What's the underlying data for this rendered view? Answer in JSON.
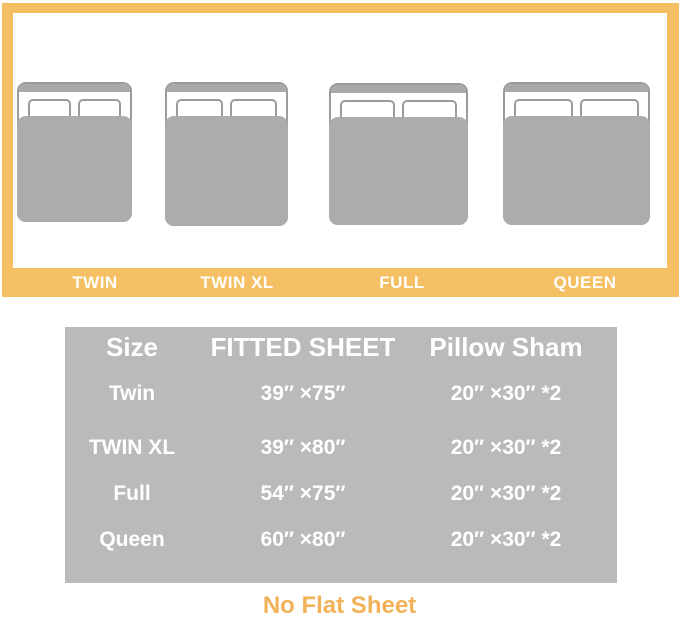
{
  "diagram": {
    "labels": [
      "TWIN",
      "TWIN XL",
      "FULL",
      "QUEEN"
    ]
  },
  "table": {
    "headers": [
      "Size",
      "FITTED SHEET",
      "Pillow Sham"
    ],
    "rows": [
      {
        "size": "Twin",
        "fitted_sheet": "39″ ×75″",
        "pillow_sham": "20″ ×30″ *2"
      },
      {
        "size": "TWIN XL",
        "fitted_sheet": "39″ ×80″",
        "pillow_sham": "20″ ×30″ *2"
      },
      {
        "size": "Full",
        "fitted_sheet": "54″ ×75″",
        "pillow_sham": "20″ ×30″ *2"
      },
      {
        "size": "Queen",
        "fitted_sheet": "60″ ×80″",
        "pillow_sham": "20″ ×30″ *2"
      }
    ]
  },
  "footer": {
    "note": "No Flat Sheet"
  },
  "colors": {
    "accent": "#F5BF63",
    "note_text": "#F1B259",
    "table_bg": "#BABABA",
    "bed_gray": "#ACACAC",
    "bed_headboard": "#A9A9A9",
    "bed_outline": "#9B9B9B",
    "text_white": "#FFFFFF"
  }
}
